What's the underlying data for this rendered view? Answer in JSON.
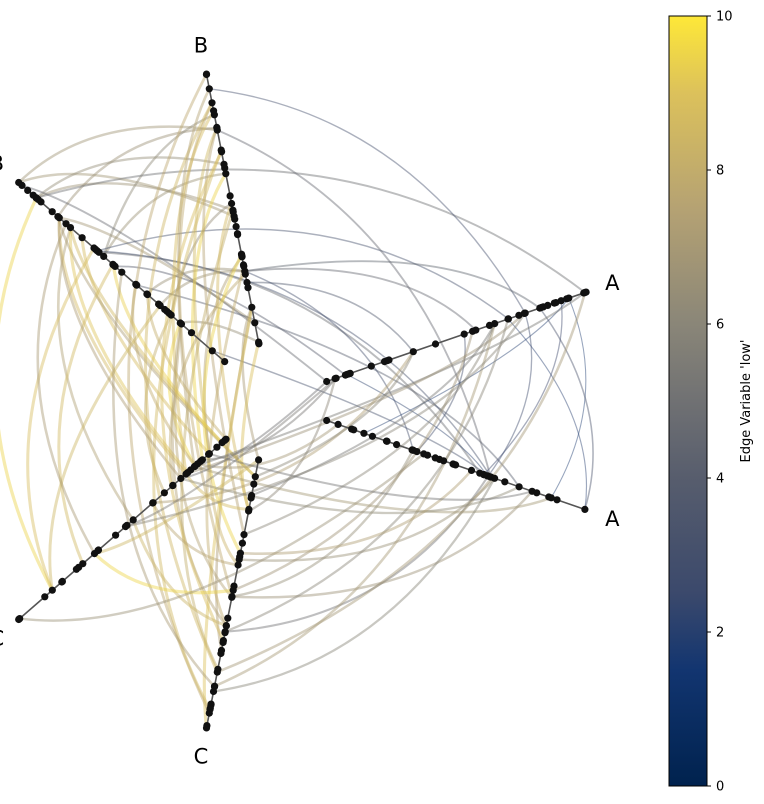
{
  "chart_data": {
    "type": "hive-plot",
    "title": "",
    "axes": [
      {
        "label": "A",
        "angle_deg": -19
      },
      {
        "label": "A",
        "angle_deg": 19
      },
      {
        "label": "B",
        "angle_deg": -101
      },
      {
        "label": "B",
        "angle_deg": -139
      },
      {
        "label": "C",
        "angle_deg": 101
      },
      {
        "label": "C",
        "angle_deg": 139
      }
    ],
    "edge_groups": [
      {
        "between": [
          "B",
          "B"
        ],
        "value_range": [
          6.0,
          7.2
        ],
        "count": 12
      },
      {
        "between": [
          "B",
          "A"
        ],
        "value_range": [
          3.0,
          5.0
        ],
        "count": 14
      },
      {
        "between": [
          "A",
          "A"
        ],
        "value_range": [
          1.5,
          3.5
        ],
        "count": 8
      },
      {
        "between": [
          "B",
          "C"
        ],
        "value_range": [
          7.0,
          9.6
        ],
        "count": 40
      },
      {
        "between": [
          "C",
          "C"
        ],
        "value_range": [
          7.5,
          9.8
        ],
        "count": 6
      },
      {
        "between": [
          "C",
          "A"
        ],
        "value_range": [
          5.0,
          7.5
        ],
        "count": 26
      }
    ],
    "colorbar": {
      "label": "Edge Variable 'low'",
      "min": 0,
      "max": 10,
      "ticks": [
        "0",
        "2",
        "4",
        "6",
        "8",
        "10"
      ],
      "colormap": "cividis"
    }
  }
}
